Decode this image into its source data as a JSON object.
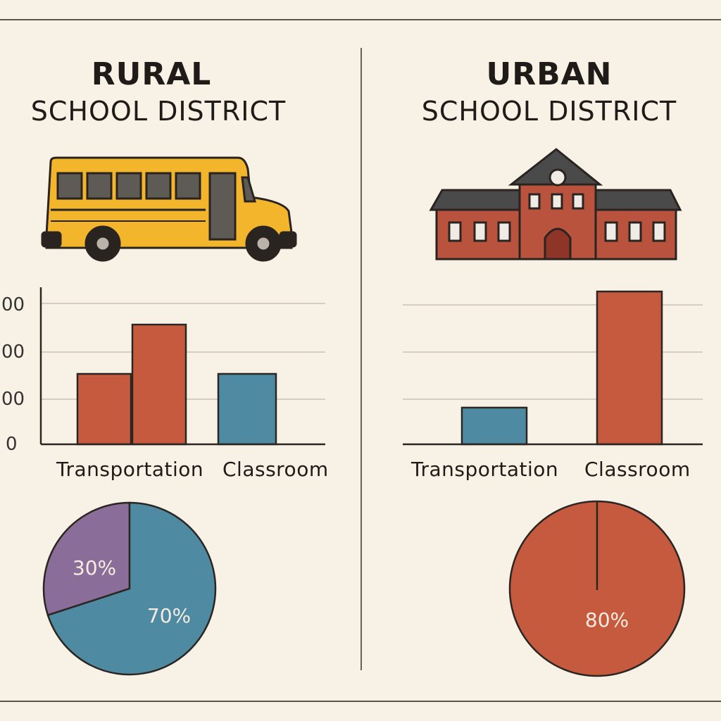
{
  "colors": {
    "red": "#c55a3f",
    "blue": "#4f8aa3",
    "purple": "#8a6d99",
    "grid": "#c9c1b6",
    "axis": "#2b2622",
    "bus": "#f3b52c",
    "brick": "#b9533e"
  },
  "rural": {
    "title_line1": "RURAL",
    "title_line2": "SCHOOL DISTRICT",
    "icon": "school-bus-icon",
    "y_ticks": [
      "00",
      "00",
      "00",
      "0"
    ],
    "categories": [
      "Transportation",
      "Classroom"
    ],
    "pie_labels": [
      "30%",
      "70%"
    ]
  },
  "urban": {
    "title_line1": "URBAN",
    "title_line2": "SCHOOL DISTRICT",
    "icon": "school-building-icon",
    "categories": [
      "Transportation",
      "Classroom"
    ],
    "pie_labels": [
      "80%"
    ]
  },
  "chart_data": [
    {
      "type": "bar",
      "title": "RURAL SCHOOL DISTRICT",
      "categories": [
        "Transportation",
        "Classroom"
      ],
      "series": [
        {
          "values": [
            40,
            68
          ]
        },
        {
          "values": [
            null,
            40
          ]
        }
      ],
      "y_ticks": [
        "00",
        "00",
        "00",
        "0"
      ],
      "ylim": [
        0,
        80
      ],
      "grid": true
    },
    {
      "type": "pie",
      "title": "RURAL SCHOOL DISTRICT",
      "values": [
        30,
        70
      ],
      "labels": [
        "30%",
        "70%"
      ]
    },
    {
      "type": "bar",
      "title": "URBAN SCHOOL DISTRICT",
      "categories": [
        "Transportation",
        "Classroom"
      ],
      "series": [
        {
          "values": [
            24,
            100
          ]
        }
      ],
      "ylim": [
        0,
        100
      ],
      "grid": true
    },
    {
      "type": "pie",
      "title": "URBAN SCHOOL DISTRICT",
      "values": [
        80
      ],
      "labels": [
        "80%"
      ]
    }
  ]
}
